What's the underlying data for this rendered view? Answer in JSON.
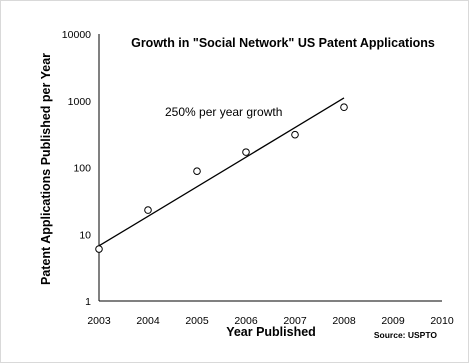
{
  "chart_data": {
    "type": "scatter",
    "title": "Growth in \"Social Network\" US Patent Applications",
    "xlabel": "Year Published",
    "ylabel": "Patent Applications Published per Year",
    "yscale": "log",
    "xlim": [
      2003,
      2010
    ],
    "ylim": [
      1,
      10000
    ],
    "x_ticks": [
      "2003",
      "2004",
      "2005",
      "2006",
      "2007",
      "2008",
      "2009",
      "2010"
    ],
    "y_ticks": [
      "1",
      "10",
      "100",
      "1000",
      "10000"
    ],
    "grid": false,
    "annotation": "250% per year growth",
    "source": "Source: USPTO",
    "series": [
      {
        "marker": "open-circle",
        "x": [
          2003,
          2004,
          2005,
          2006,
          2007,
          2008
        ],
        "y": [
          6,
          23,
          88,
          170,
          310,
          800
        ]
      }
    ],
    "trendline": {
      "type": "exponential",
      "x": [
        2003,
        2008
      ],
      "y": [
        6.7,
        1100
      ]
    }
  }
}
